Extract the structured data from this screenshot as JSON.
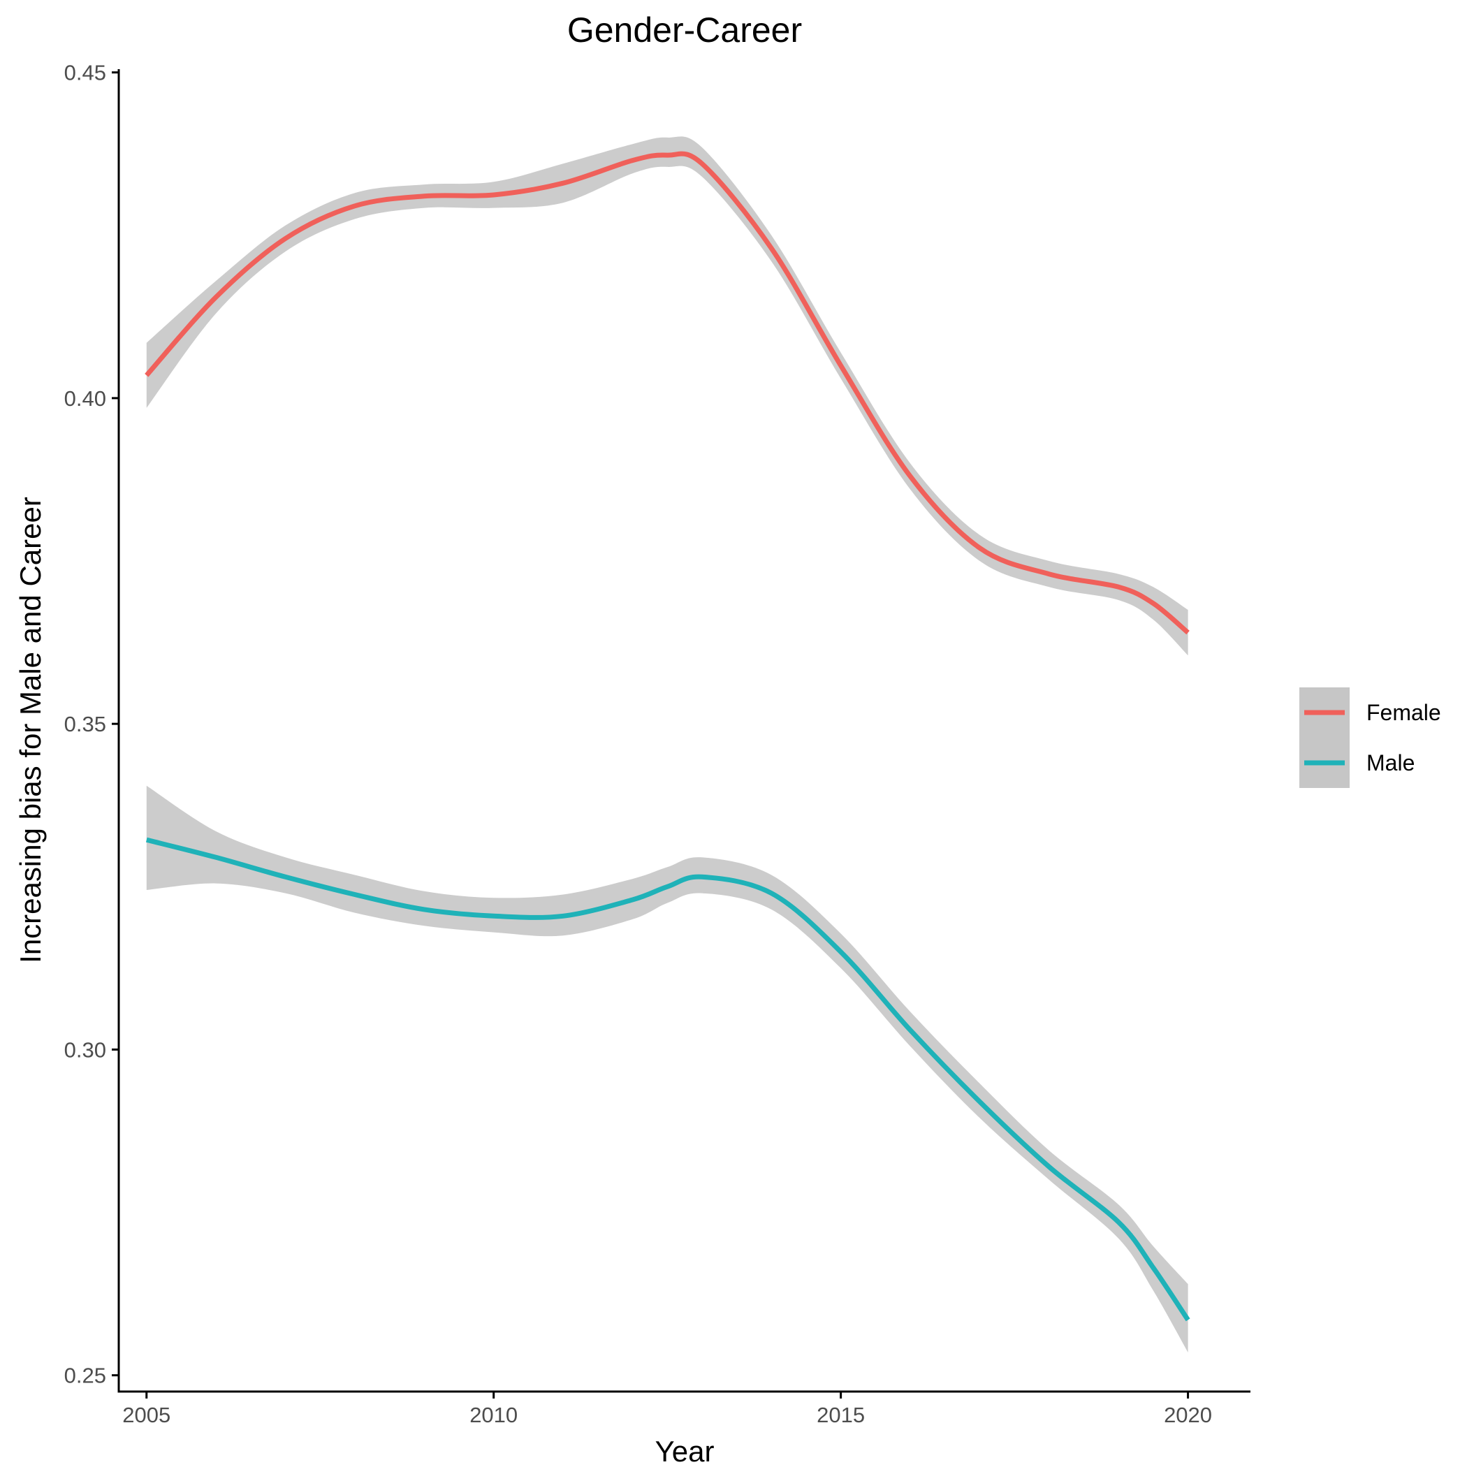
{
  "chart_data": {
    "type": "line",
    "title": "Gender-Career",
    "xlabel": "Year",
    "ylabel": "Increasing bias for Male and Career",
    "xlim": [
      2004.6,
      2020.9
    ],
    "ylim": [
      0.2475,
      0.4505
    ],
    "x_ticks": [
      2005,
      2010,
      2015,
      2020
    ],
    "x_tick_labels": [
      "2005",
      "2010",
      "2015",
      "2020"
    ],
    "y_ticks": [
      0.25,
      0.3,
      0.35,
      0.4,
      0.45
    ],
    "y_tick_labels": [
      "0.25",
      "0.30",
      "0.35",
      "0.40",
      "0.45"
    ],
    "grid": false,
    "legend": {
      "position": "right",
      "entries": [
        "Female",
        "Male"
      ]
    },
    "confidence_band_color": "#cccccc",
    "x": [
      2005,
      2006,
      2007,
      2008,
      2009,
      2010,
      2011,
      2012,
      2012.5,
      2013,
      2014,
      2015,
      2016,
      2017,
      2018,
      2019,
      2019.5,
      2020
    ],
    "series": [
      {
        "name": "Female",
        "color": "#f0605a",
        "values": [
          0.4035,
          0.4155,
          0.4245,
          0.4295,
          0.431,
          0.4312,
          0.433,
          0.4365,
          0.4373,
          0.436,
          0.423,
          0.405,
          0.388,
          0.377,
          0.373,
          0.371,
          0.3685,
          0.364
        ],
        "lower": [
          0.3985,
          0.413,
          0.4225,
          0.4275,
          0.4292,
          0.4292,
          0.43,
          0.4345,
          0.4355,
          0.434,
          0.421,
          0.403,
          0.386,
          0.375,
          0.371,
          0.369,
          0.366,
          0.3605
        ],
        "upper": [
          0.4085,
          0.418,
          0.4265,
          0.4315,
          0.4328,
          0.4332,
          0.436,
          0.439,
          0.44,
          0.4385,
          0.425,
          0.407,
          0.39,
          0.379,
          0.375,
          0.373,
          0.371,
          0.3675
        ]
      },
      {
        "name": "Male",
        "color": "#1fb2b8",
        "values": [
          0.3322,
          0.3295,
          0.3265,
          0.3238,
          0.3215,
          0.3205,
          0.3205,
          0.323,
          0.325,
          0.3265,
          0.324,
          0.315,
          0.303,
          0.292,
          0.282,
          0.2735,
          0.2665,
          0.2585
        ],
        "lower": [
          0.3245,
          0.3255,
          0.324,
          0.321,
          0.319,
          0.318,
          0.3175,
          0.32,
          0.3225,
          0.324,
          0.3215,
          0.3125,
          0.3005,
          0.2895,
          0.28,
          0.271,
          0.263,
          0.2535
        ],
        "upper": [
          0.3405,
          0.3335,
          0.3295,
          0.3268,
          0.3243,
          0.3233,
          0.3238,
          0.3262,
          0.328,
          0.3295,
          0.3268,
          0.3178,
          0.3058,
          0.2948,
          0.2845,
          0.2762,
          0.2698,
          0.264
        ]
      }
    ]
  }
}
